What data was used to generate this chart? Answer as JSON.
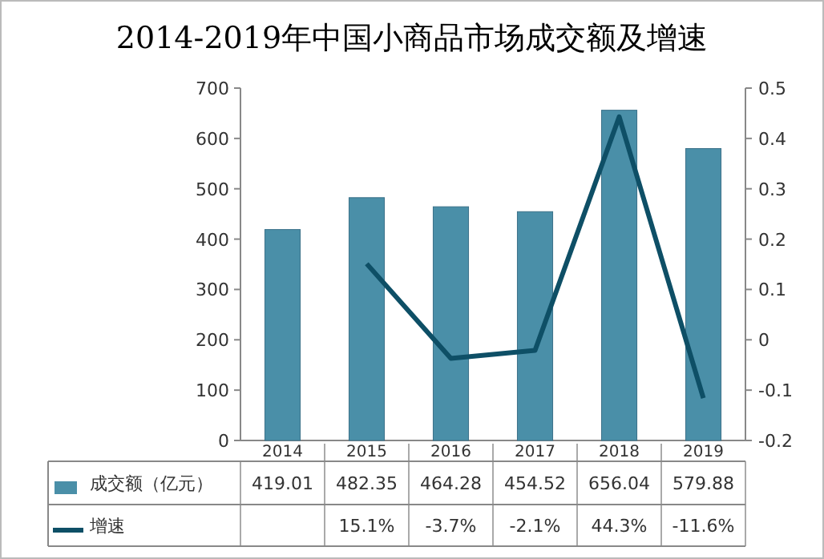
{
  "chart_data": {
    "type": "bar",
    "title": "2014-2019年中国小商品市场成交额及增速",
    "categories": [
      "2014",
      "2015",
      "2016",
      "2017",
      "2018",
      "2019"
    ],
    "series": [
      {
        "name": "成交额（亿元）",
        "color": "#4a8fa8",
        "values": [
          419.01,
          482.35,
          464.28,
          454.52,
          656.04,
          579.88
        ]
      },
      {
        "name": "增速",
        "type": "line",
        "axis": "y2",
        "color": "#0e4f66",
        "values": [
          null,
          0.151,
          -0.037,
          -0.021,
          0.443,
          -0.116
        ],
        "value_labels": [
          null,
          "15.1%",
          "-3.7%",
          "-2.1%",
          "44.3%",
          "-11.6%"
        ]
      }
    ],
    "ylim": [
      0,
      700
    ],
    "yticks": [
      0,
      100,
      200,
      300,
      400,
      500,
      600,
      700
    ],
    "y2lim": [
      -0.2,
      0.5
    ],
    "y2ticks": [
      -0.2,
      -0.1,
      0,
      0.1,
      0.2,
      0.3,
      0.4,
      0.5
    ],
    "data_labels": true,
    "legend": "bottom",
    "grid": false,
    "marker": "none",
    "line_style": "solid"
  }
}
